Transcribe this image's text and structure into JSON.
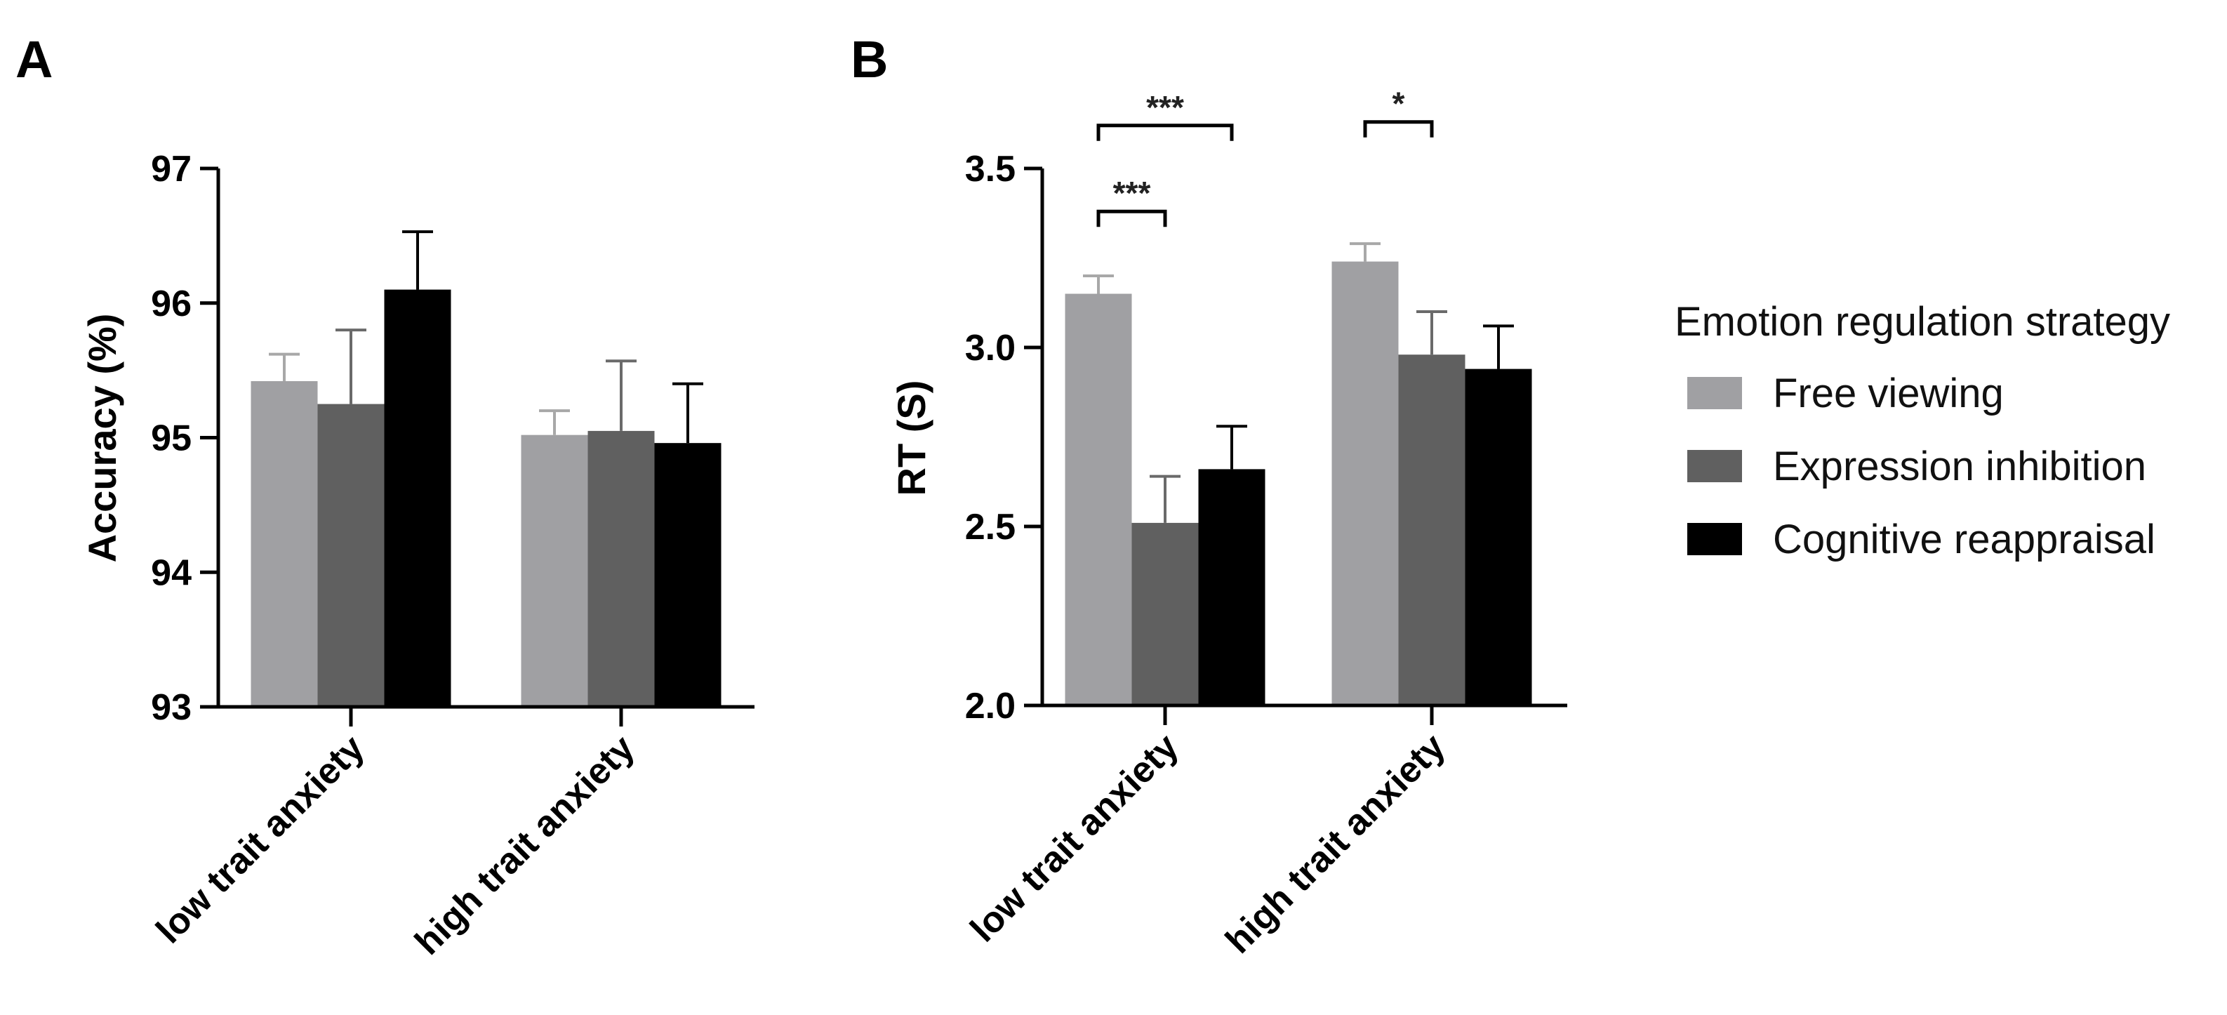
{
  "chart_data": [
    {
      "panel": "A",
      "type": "bar",
      "ylabel": "Accuracy (%)",
      "xlabel": "",
      "ylim": [
        93,
        97
      ],
      "yticks": [
        "93",
        "94",
        "95",
        "96",
        "97"
      ],
      "categories": [
        "low trait anxiety",
        "high trait anxiety"
      ],
      "series": [
        {
          "name": "Free viewing",
          "color": "#a0a0a3",
          "values": [
            95.42,
            95.02
          ],
          "errors": [
            0.2,
            0.18
          ]
        },
        {
          "name": "Expression inhibition",
          "color": "#606060",
          "values": [
            95.25,
            95.05
          ],
          "errors": [
            0.55,
            0.52
          ]
        },
        {
          "name": "Cognitive reappraisal",
          "color": "#000000",
          "values": [
            96.1,
            94.96
          ],
          "errors": [
            0.43,
            0.44
          ]
        }
      ],
      "significance": []
    },
    {
      "panel": "B",
      "type": "bar",
      "ylabel": "RT (S)",
      "xlabel": "",
      "ylim": [
        2.0,
        3.5
      ],
      "yticks": [
        "2.0",
        "2.5",
        "3.0",
        "3.5"
      ],
      "categories": [
        "low trait anxiety",
        "high trait anxiety"
      ],
      "series": [
        {
          "name": "Free viewing",
          "color": "#a0a0a3",
          "values": [
            3.15,
            3.24
          ],
          "errors": [
            0.05,
            0.05
          ]
        },
        {
          "name": "Expression inhibition",
          "color": "#606060",
          "values": [
            2.51,
            2.98
          ],
          "errors": [
            0.13,
            0.12
          ]
        },
        {
          "name": "Cognitive reappraisal",
          "color": "#000000",
          "values": [
            2.66,
            2.94
          ],
          "errors": [
            0.12,
            0.12
          ]
        }
      ],
      "significance": [
        {
          "category": 0,
          "from": 0,
          "to": 1,
          "label": "***",
          "level": 3.38
        },
        {
          "category": 0,
          "from": 0,
          "to": 2,
          "label": "***",
          "level": 3.62
        },
        {
          "category": 1,
          "from": 0,
          "to": 1,
          "label": "*",
          "level": 3.63
        }
      ]
    }
  ],
  "legend": {
    "title": "Emotion regulation strategy",
    "items": [
      {
        "label": "Free viewing",
        "color": "#a0a0a3"
      },
      {
        "label": "Expression inhibition",
        "color": "#606060"
      },
      {
        "label": "Cognitive reappraisal",
        "color": "#000000"
      }
    ]
  }
}
